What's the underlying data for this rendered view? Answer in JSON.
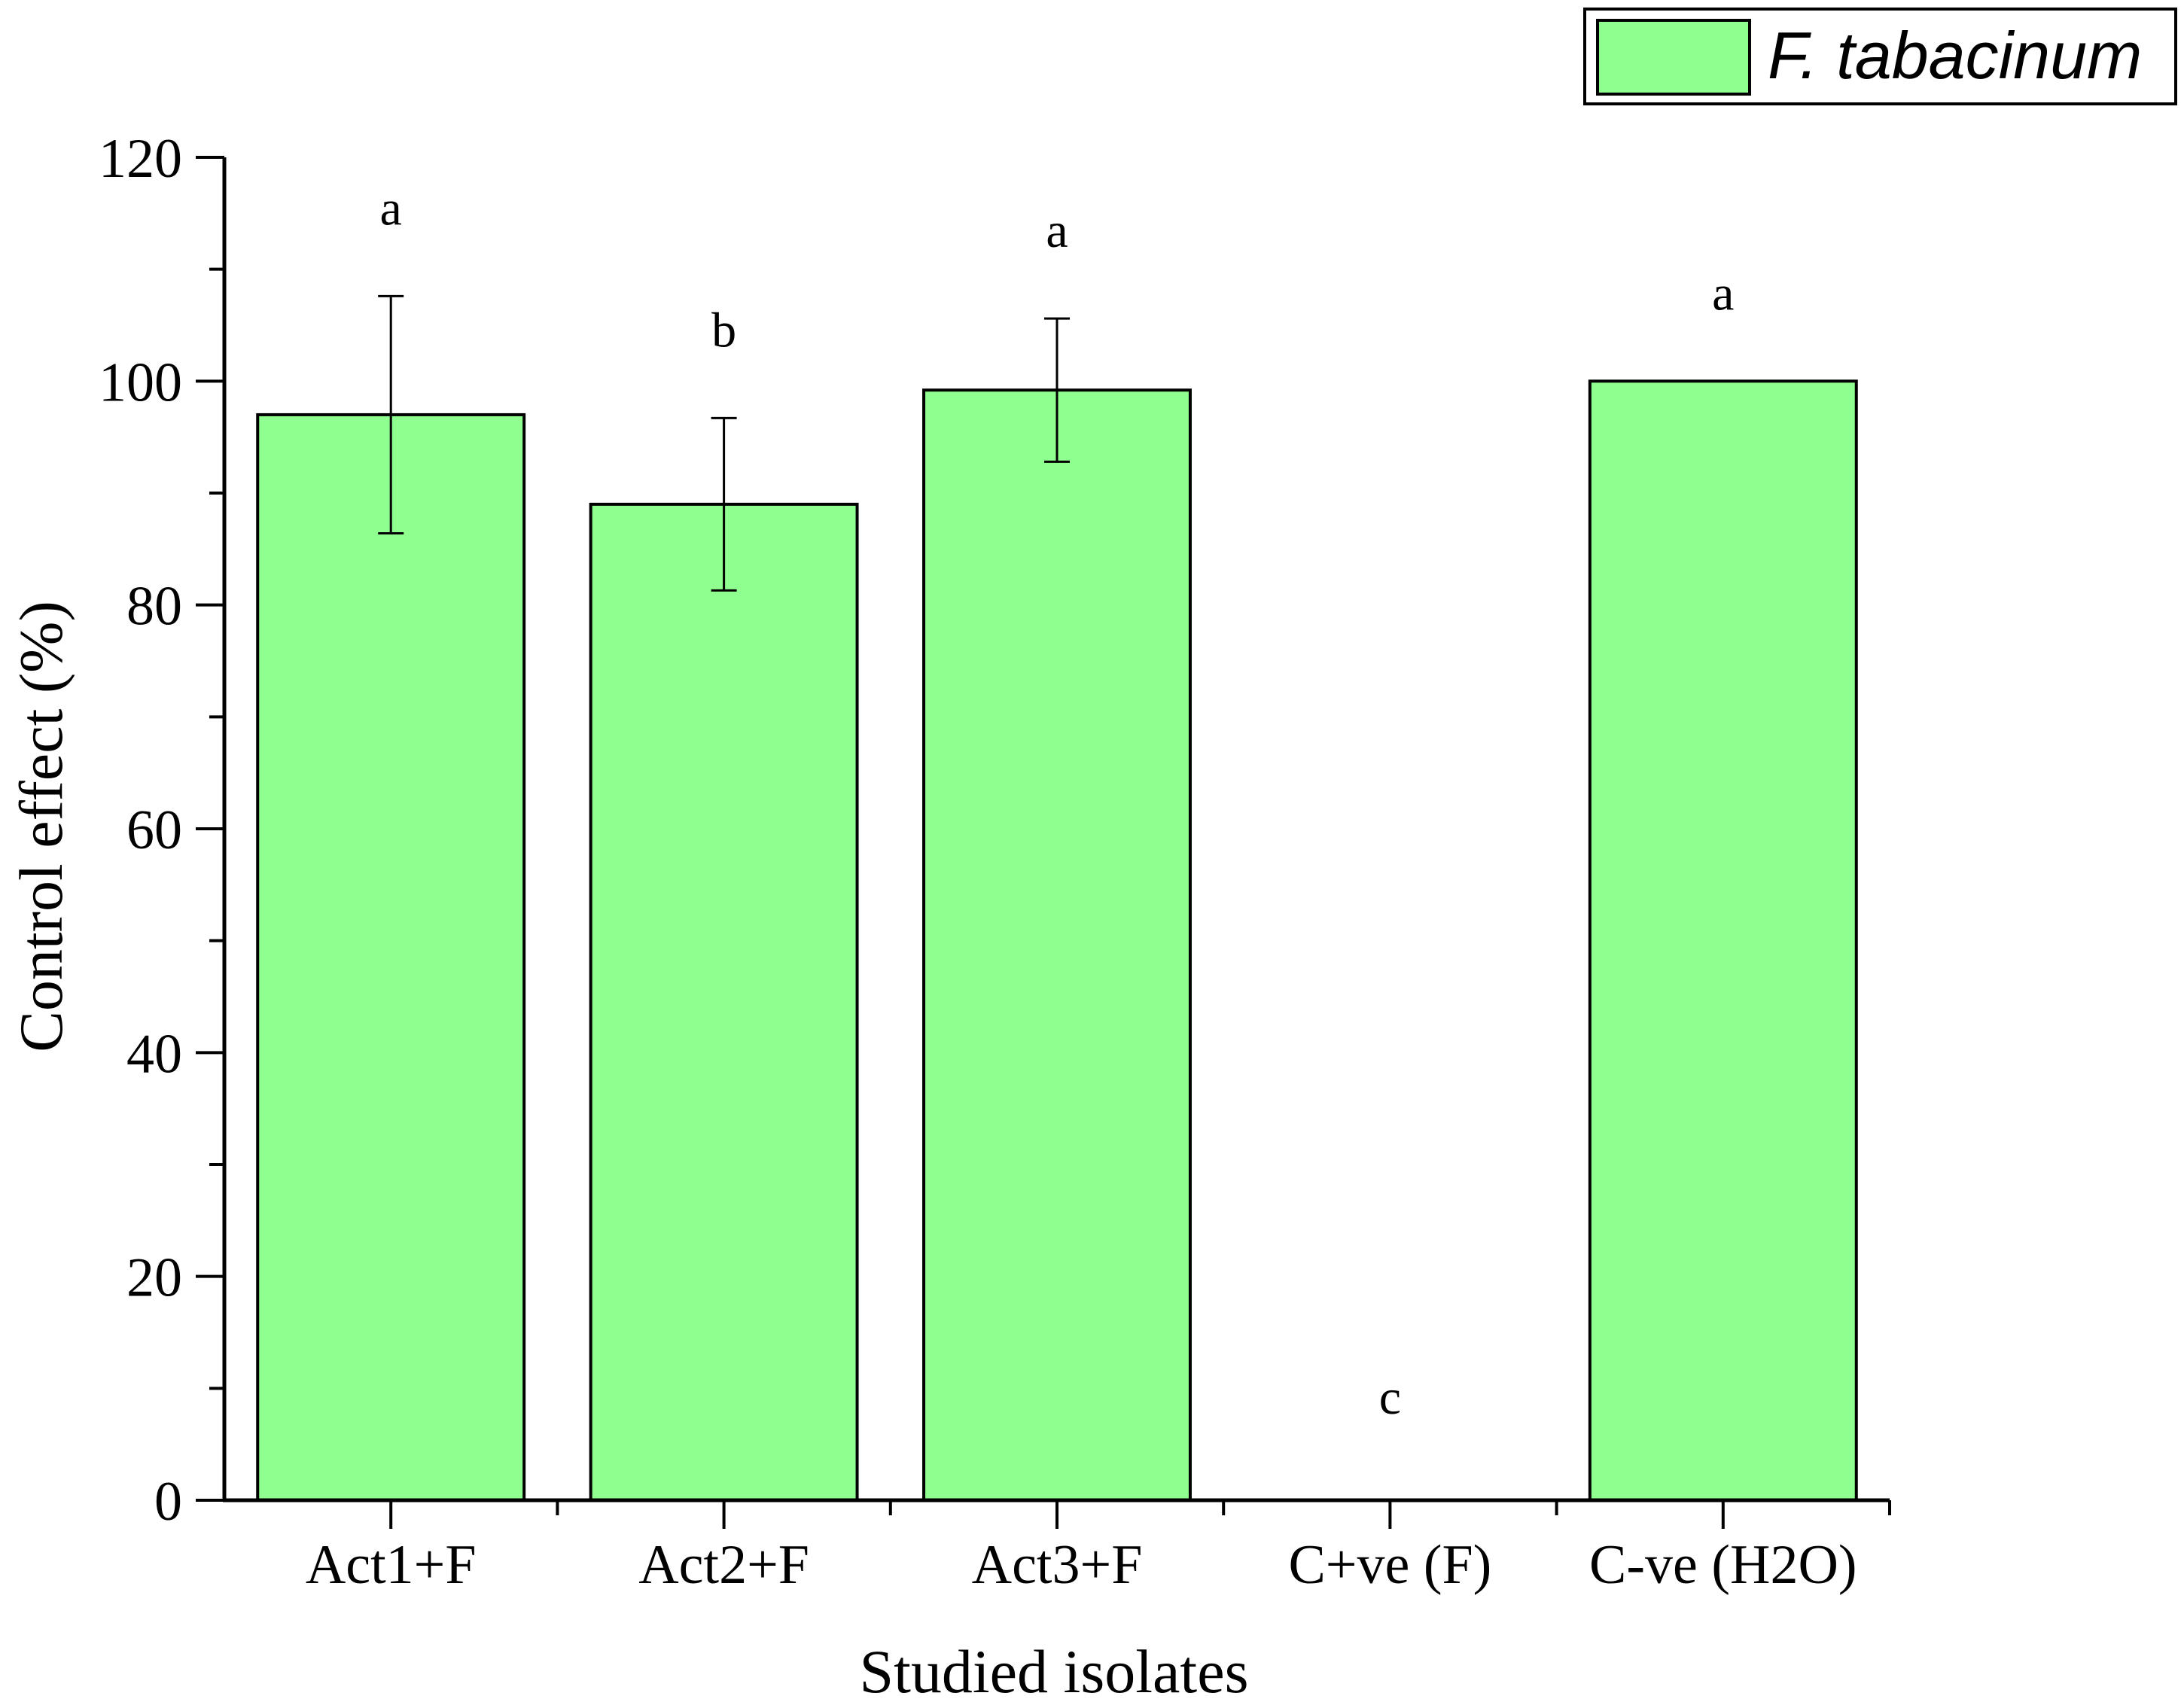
{
  "chart_data": {
    "type": "bar",
    "title": "",
    "xlabel": "Studied isolates",
    "ylabel": "Control effect (%)",
    "ylim": [
      0,
      120
    ],
    "yticks": [
      0,
      20,
      40,
      60,
      80,
      100,
      120
    ],
    "categories": [
      "Act1+F",
      "Act2+F",
      "Act3+F",
      "C+ve (F)",
      "C-ve (H2O)"
    ],
    "series": [
      {
        "name": "F. tabacinum",
        "values": [
          97,
          89,
          99.2,
          0,
          100
        ],
        "errors": [
          10.6,
          7.7,
          6.4,
          0,
          0
        ],
        "color": "#8fff8f"
      }
    ],
    "significance": [
      "a",
      "b",
      "a",
      "c",
      "a"
    ],
    "legend": {
      "placement": "top-right",
      "label": "F. tabacinum"
    },
    "grid": false
  }
}
